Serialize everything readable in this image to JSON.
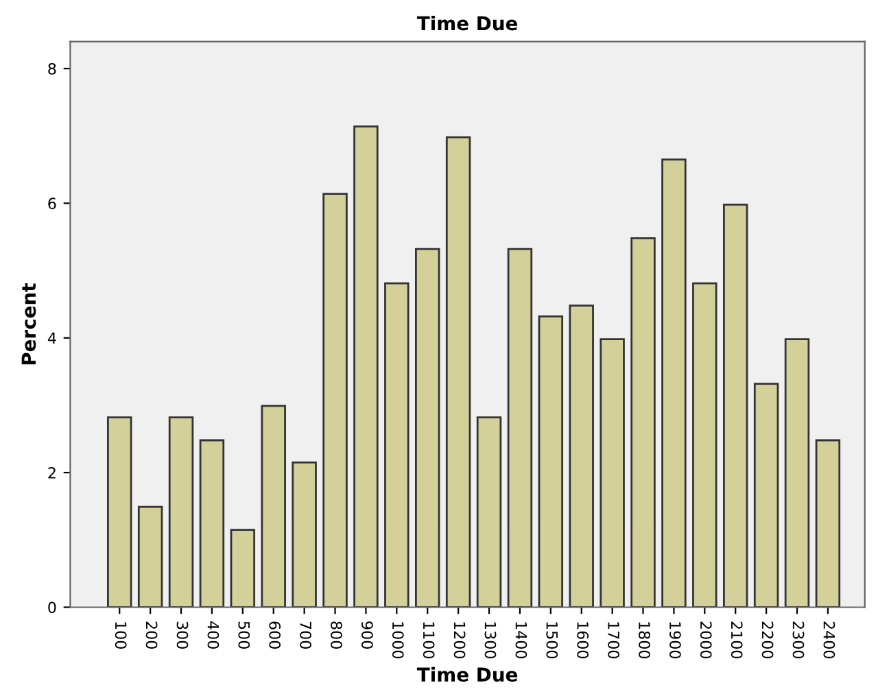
{
  "chart_data": {
    "type": "bar",
    "title": "Time Due",
    "xlabel": "Time Due",
    "ylabel": "Percent",
    "categories": [
      "100",
      "200",
      "300",
      "400",
      "500",
      "600",
      "700",
      "800",
      "900",
      "1000",
      "1100",
      "1200",
      "1300",
      "1400",
      "1500",
      "1600",
      "1700",
      "1800",
      "1900",
      "2000",
      "2100",
      "2200",
      "2300",
      "2400"
    ],
    "values": [
      2.82,
      1.49,
      2.82,
      2.48,
      1.15,
      2.99,
      2.15,
      6.14,
      7.14,
      4.81,
      5.32,
      6.98,
      2.82,
      5.32,
      4.32,
      4.48,
      3.98,
      5.48,
      6.65,
      4.81,
      5.98,
      3.32,
      3.98,
      2.48
    ],
    "color": "#d4d09a",
    "ylim": [
      0,
      8.4
    ],
    "yticks": [
      0,
      2,
      4,
      6,
      8
    ],
    "grid": false,
    "legend": false
  }
}
